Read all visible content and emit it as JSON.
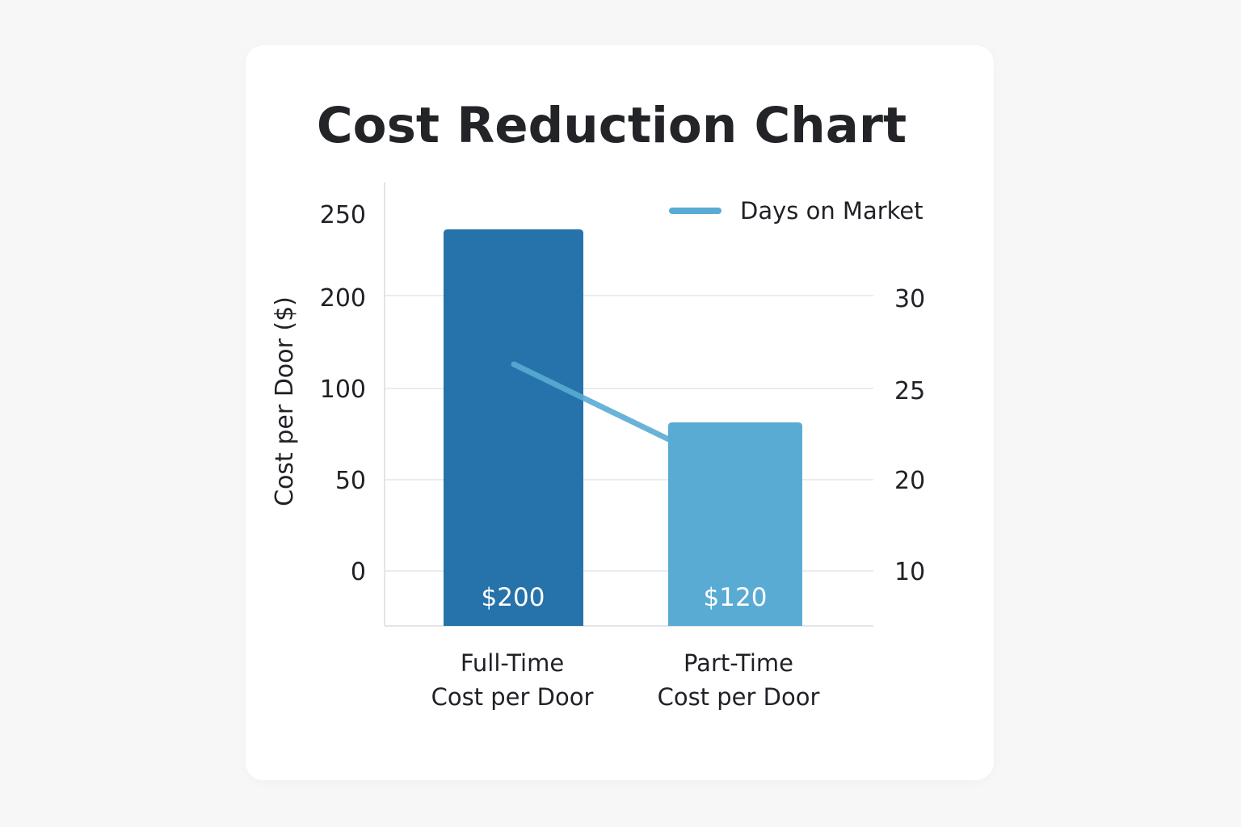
{
  "chart_data": {
    "type": "bar",
    "title": "Cost Reduction Chart",
    "categories": [
      [
        "Full-Time",
        "Cost per Door"
      ],
      [
        "Part-Time",
        "Cost per Door"
      ]
    ],
    "ylabel": "Cost per Door ($)",
    "y_ticks": [
      0,
      50,
      100,
      200,
      250
    ],
    "y2_ticks": [
      10,
      20,
      25,
      30
    ],
    "series": [
      {
        "type": "bar",
        "values": [
          200,
          120
        ],
        "data_labels": [
          "$200",
          "$120"
        ],
        "colors": [
          "#2672aa",
          "#5aabd4"
        ]
      },
      {
        "type": "line",
        "name": "Days on Market",
        "axis": "right",
        "values": [
          26,
          21
        ],
        "color": "#5aabd4"
      }
    ],
    "grid": true,
    "legend": "top-right"
  }
}
